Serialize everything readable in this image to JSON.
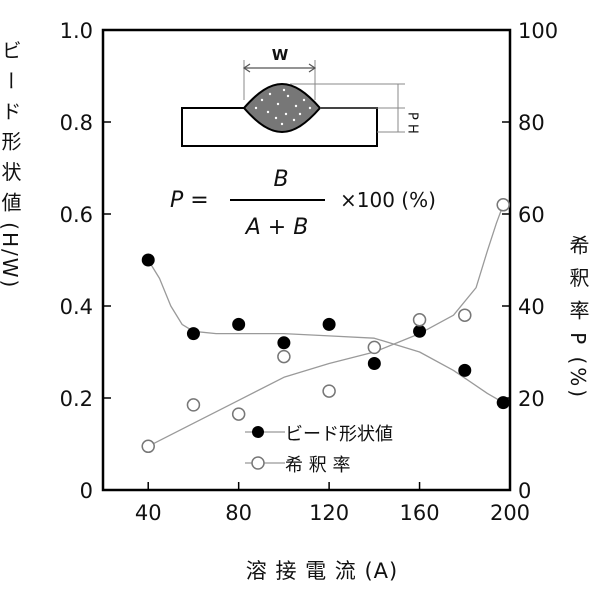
{
  "chart_data": {
    "type": "line",
    "xlabel": "溶 接 電 流 (A)",
    "ylabel_left": "ビ ー ド 形 状 値 (H/W)",
    "ylabel_right": "希 釈 率 P (%)",
    "xlim": [
      20,
      200
    ],
    "ylim_left": [
      0,
      1.0
    ],
    "ylim_right": [
      0,
      100
    ],
    "x_ticks": [
      "40",
      "80",
      "120",
      "160",
      "200"
    ],
    "x_tick_values": [
      40,
      80,
      120,
      160,
      200
    ],
    "y_left_ticks": [
      "0",
      "0.2",
      "0.4",
      "0.6",
      "0.8",
      "1.0"
    ],
    "y_left_tick_values": [
      0,
      0.2,
      0.4,
      0.6,
      0.8,
      1.0
    ],
    "y_right_ticks": [
      "0",
      "20",
      "40",
      "60",
      "80",
      "100"
    ],
    "y_right_tick_values": [
      0,
      20,
      40,
      60,
      80,
      100
    ],
    "grid": false,
    "legend_position": "bottom-center",
    "series": [
      {
        "name": "ビード形状値",
        "marker": "filled-circle",
        "axis": "left",
        "x": [
          40,
          60,
          80,
          100,
          120,
          140,
          160,
          180,
          197
        ],
        "y": [
          0.5,
          0.34,
          0.36,
          0.32,
          0.36,
          0.275,
          0.345,
          0.26,
          0.19
        ],
        "curve_x": [
          40,
          45,
          50,
          55,
          60,
          70,
          80,
          100,
          120,
          140,
          160,
          175,
          190,
          197
        ],
        "curve_y": [
          0.5,
          0.46,
          0.4,
          0.36,
          0.345,
          0.34,
          0.34,
          0.34,
          0.335,
          0.33,
          0.3,
          0.26,
          0.21,
          0.19
        ]
      },
      {
        "name": "希 釈 率",
        "marker": "open-circle",
        "axis": "right",
        "x": [
          40,
          60,
          80,
          100,
          120,
          140,
          160,
          180,
          197
        ],
        "y": [
          9.5,
          18.5,
          16.5,
          29,
          21.5,
          31,
          37,
          38,
          62
        ],
        "curve_x": [
          40,
          60,
          80,
          100,
          120,
          140,
          160,
          175,
          185,
          190,
          194,
          197
        ],
        "curve_y": [
          9.5,
          14.5,
          19.5,
          24.5,
          27.5,
          30,
          34,
          38,
          44,
          52,
          58,
          62
        ]
      }
    ],
    "legend": [
      {
        "label": "ビード形状値",
        "marker": "filled-circle"
      },
      {
        "label": "希 釈 率",
        "marker": "open-circle"
      }
    ],
    "annotations": {
      "diagram_W": "W",
      "diagram_PH": "P H",
      "formula_lhs": "P =",
      "formula_numerator": "B",
      "formula_denominator": "A + B",
      "formula_rhs": "×100 (%)"
    }
  }
}
